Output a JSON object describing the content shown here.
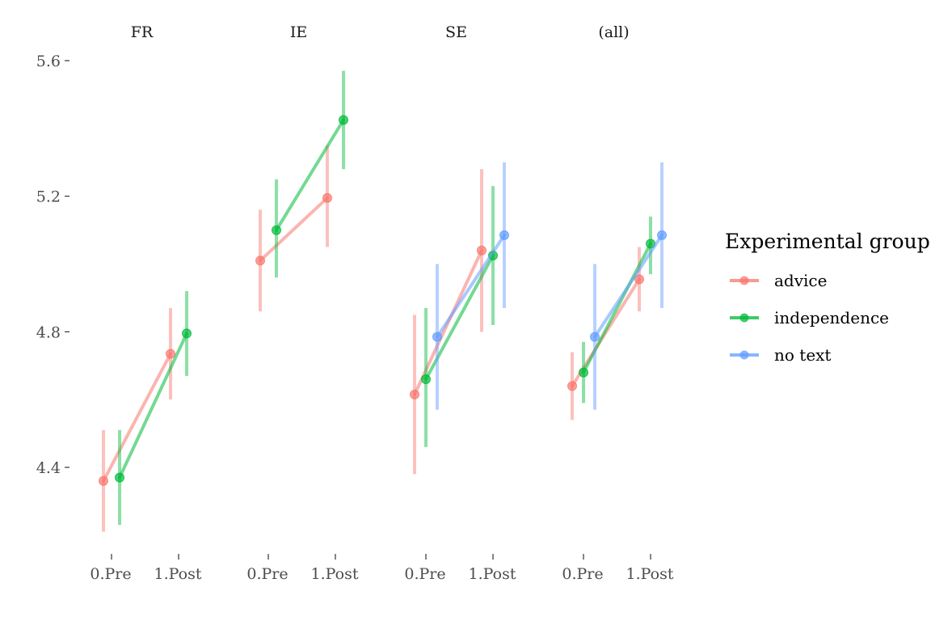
{
  "chart_data": {
    "type": "line",
    "x_categories": [
      "0.Pre",
      "1.Post"
    ],
    "y_ticks": [
      4.4,
      4.8,
      5.2,
      5.6
    ],
    "ylim": [
      4.18,
      5.62
    ],
    "legend": {
      "title": "Experimental group",
      "placement": "right"
    },
    "groups": [
      {
        "name": "advice",
        "color": "#F8766D"
      },
      {
        "name": "independence",
        "color": "#00BA38"
      },
      {
        "name": "no text",
        "color": "#619CFF"
      }
    ],
    "panels": [
      {
        "title": "FR",
        "series": [
          {
            "group": "advice",
            "mean": [
              4.36,
              4.735
            ],
            "lower": [
              4.21,
              4.6
            ],
            "upper": [
              4.51,
              4.87
            ]
          },
          {
            "group": "independence",
            "mean": [
              4.37,
              4.795
            ],
            "lower": [
              4.23,
              4.67
            ],
            "upper": [
              4.51,
              4.92
            ]
          }
        ]
      },
      {
        "title": "IE",
        "series": [
          {
            "group": "advice",
            "mean": [
              5.01,
              5.195
            ],
            "lower": [
              4.86,
              5.05
            ],
            "upper": [
              5.16,
              5.35
            ]
          },
          {
            "group": "independence",
            "mean": [
              5.1,
              5.425
            ],
            "lower": [
              4.96,
              5.28
            ],
            "upper": [
              5.25,
              5.57
            ]
          }
        ]
      },
      {
        "title": "SE",
        "series": [
          {
            "group": "advice",
            "mean": [
              4.615,
              5.04
            ],
            "lower": [
              4.38,
              4.8
            ],
            "upper": [
              4.85,
              5.28
            ]
          },
          {
            "group": "independence",
            "mean": [
              4.66,
              5.025
            ],
            "lower": [
              4.46,
              4.82
            ],
            "upper": [
              4.87,
              5.23
            ]
          },
          {
            "group": "no text",
            "mean": [
              4.785,
              5.085
            ],
            "lower": [
              4.57,
              4.87
            ],
            "upper": [
              5.0,
              5.3
            ]
          }
        ]
      },
      {
        "title": "(all)",
        "series": [
          {
            "group": "advice",
            "mean": [
              4.64,
              4.955
            ],
            "lower": [
              4.54,
              4.86
            ],
            "upper": [
              4.74,
              5.05
            ]
          },
          {
            "group": "independence",
            "mean": [
              4.68,
              5.06
            ],
            "lower": [
              4.59,
              4.97
            ],
            "upper": [
              4.77,
              5.14
            ]
          },
          {
            "group": "no text",
            "mean": [
              4.785,
              5.085
            ],
            "lower": [
              4.57,
              4.87
            ],
            "upper": [
              5.0,
              5.3
            ]
          }
        ]
      }
    ]
  }
}
